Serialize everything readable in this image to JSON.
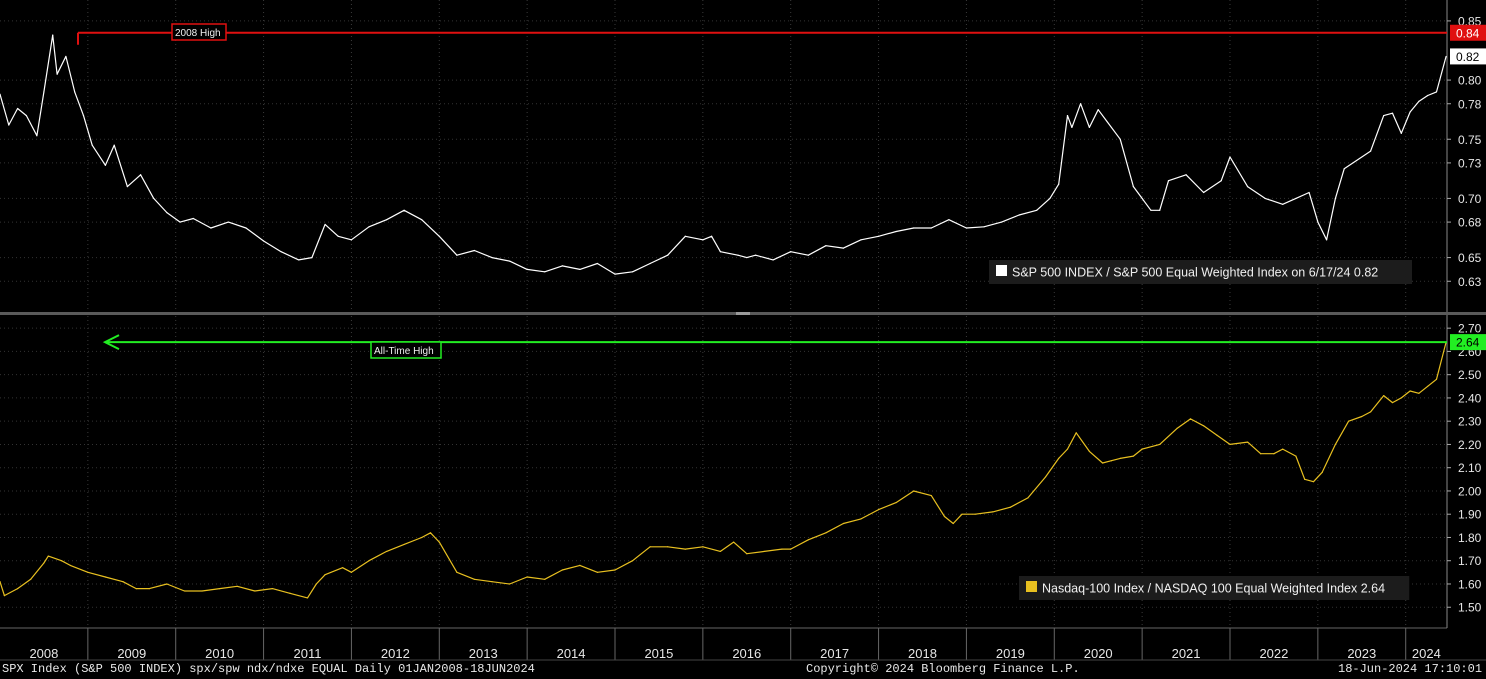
{
  "footer": {
    "left": "SPX Index (S&P 500 INDEX) spx/spw ndx/ndxe EQUAL  Daily 01JAN2008-18JUN2024",
    "center": "Copyright© 2024 Bloomberg Finance L.P.",
    "right": "18-Jun-2024 17:10:01"
  },
  "x_axis": {
    "years": [
      "2008",
      "2009",
      "2010",
      "2011",
      "2012",
      "2013",
      "2014",
      "2015",
      "2016",
      "2017",
      "2018",
      "2019",
      "2020",
      "2021",
      "2022",
      "2023",
      "2024"
    ],
    "range": [
      "2008-01-01",
      "2024-06-18"
    ]
  },
  "chart_data": [
    {
      "type": "line",
      "panel": "top",
      "ylim": [
        0.615,
        0.855
      ],
      "y_ticks": [
        "0.85",
        "0.80",
        "0.78",
        "0.75",
        "0.73",
        "0.70",
        "0.68",
        "0.65",
        "0.63"
      ],
      "legend": "S&P 500 INDEX / S&P 500 Equal Weighted Index on 6/17/24 0.82",
      "legend_placement": "bottom-right",
      "line_color": "#ffffff",
      "reference_line": {
        "label": "2008 High",
        "value": 0.84,
        "value_label": "0.84",
        "color": "#e01010"
      },
      "last_value_label": "0.82",
      "series": [
        {
          "name": "S&P 500 INDEX / S&P 500 Equal Weighted Index",
          "x": [
            2008.0,
            2008.1,
            2008.2,
            2008.3,
            2008.42,
            2008.5,
            2008.6,
            2008.65,
            2008.75,
            2008.85,
            2008.95,
            2009.05,
            2009.2,
            2009.3,
            2009.45,
            2009.6,
            2009.75,
            2009.9,
            2010.05,
            2010.2,
            2010.4,
            2010.6,
            2010.8,
            2011.0,
            2011.2,
            2011.4,
            2011.55,
            2011.7,
            2011.85,
            2012.0,
            2012.2,
            2012.4,
            2012.6,
            2012.8,
            2013.0,
            2013.2,
            2013.4,
            2013.6,
            2013.8,
            2014.0,
            2014.2,
            2014.4,
            2014.6,
            2014.8,
            2015.0,
            2015.2,
            2015.4,
            2015.6,
            2015.8,
            2016.0,
            2016.1,
            2016.2,
            2016.4,
            2016.5,
            2016.6,
            2016.8,
            2017.0,
            2017.2,
            2017.4,
            2017.6,
            2017.8,
            2018.0,
            2018.2,
            2018.4,
            2018.6,
            2018.8,
            2019.0,
            2019.2,
            2019.4,
            2019.6,
            2019.8,
            2019.95,
            2020.05,
            2020.15,
            2020.2,
            2020.3,
            2020.4,
            2020.5,
            2020.6,
            2020.75,
            2020.9,
            2021.0,
            2021.1,
            2021.2,
            2021.3,
            2021.5,
            2021.7,
            2021.9,
            2022.0,
            2022.2,
            2022.4,
            2022.6,
            2022.75,
            2022.9,
            2023.0,
            2023.1,
            2023.2,
            2023.3,
            2023.4,
            2023.6,
            2023.75,
            2023.85,
            2023.95,
            2024.05,
            2024.15,
            2024.25,
            2024.35,
            2024.46
          ],
          "values": [
            0.788,
            0.762,
            0.776,
            0.77,
            0.753,
            0.79,
            0.838,
            0.805,
            0.82,
            0.79,
            0.77,
            0.745,
            0.728,
            0.745,
            0.71,
            0.72,
            0.7,
            0.688,
            0.68,
            0.683,
            0.675,
            0.68,
            0.675,
            0.664,
            0.655,
            0.648,
            0.65,
            0.678,
            0.668,
            0.665,
            0.676,
            0.682,
            0.69,
            0.682,
            0.668,
            0.652,
            0.656,
            0.65,
            0.647,
            0.64,
            0.638,
            0.643,
            0.64,
            0.645,
            0.636,
            0.638,
            0.645,
            0.652,
            0.668,
            0.665,
            0.668,
            0.655,
            0.652,
            0.65,
            0.652,
            0.648,
            0.655,
            0.652,
            0.66,
            0.658,
            0.665,
            0.668,
            0.672,
            0.675,
            0.675,
            0.682,
            0.675,
            0.676,
            0.68,
            0.686,
            0.69,
            0.7,
            0.712,
            0.77,
            0.76,
            0.78,
            0.76,
            0.775,
            0.765,
            0.75,
            0.71,
            0.7,
            0.69,
            0.69,
            0.715,
            0.72,
            0.705,
            0.715,
            0.735,
            0.71,
            0.7,
            0.695,
            0.7,
            0.705,
            0.68,
            0.665,
            0.7,
            0.725,
            0.73,
            0.74,
            0.77,
            0.772,
            0.755,
            0.773,
            0.782,
            0.787,
            0.79,
            0.82
          ]
        }
      ]
    },
    {
      "type": "line",
      "panel": "bottom",
      "ylim": [
        1.415,
        2.705
      ],
      "y_ticks": [
        "2.70",
        "2.60",
        "2.50",
        "2.40",
        "2.30",
        "2.20",
        "2.10",
        "2.00",
        "1.90",
        "1.80",
        "1.70",
        "1.60",
        "1.50"
      ],
      "legend": "Nasdaq-100 Index / NASDAQ 100 Equal Weighted Index 2.64",
      "legend_placement": "bottom-right",
      "line_color": "#e8c020",
      "reference_line": {
        "label": "All-Time High",
        "value": 2.64,
        "value_label": "2.64",
        "color": "#22ee22"
      },
      "last_value_label": "2.64",
      "series": [
        {
          "name": "Nasdaq-100 Index / NASDAQ 100 Equal Weighted Index",
          "x": [
            2008.0,
            2008.05,
            2008.2,
            2008.35,
            2008.5,
            2008.55,
            2008.7,
            2008.8,
            2009.0,
            2009.2,
            2009.4,
            2009.55,
            2009.7,
            2009.9,
            2010.1,
            2010.3,
            2010.5,
            2010.7,
            2010.9,
            2011.1,
            2011.3,
            2011.5,
            2011.6,
            2011.7,
            2011.9,
            2012.0,
            2012.2,
            2012.4,
            2012.6,
            2012.8,
            2012.9,
            2013.0,
            2013.2,
            2013.4,
            2013.6,
            2013.8,
            2014.0,
            2014.2,
            2014.4,
            2014.6,
            2014.8,
            2015.0,
            2015.2,
            2015.4,
            2015.6,
            2015.8,
            2016.0,
            2016.2,
            2016.35,
            2016.5,
            2016.7,
            2016.9,
            2017.0,
            2017.2,
            2017.4,
            2017.6,
            2017.8,
            2018.0,
            2018.2,
            2018.4,
            2018.6,
            2018.75,
            2018.85,
            2018.95,
            2019.1,
            2019.3,
            2019.5,
            2019.7,
            2019.9,
            2020.05,
            2020.15,
            2020.25,
            2020.4,
            2020.55,
            2020.65,
            2020.75,
            2020.9,
            2021.0,
            2021.2,
            2021.4,
            2021.55,
            2021.7,
            2021.85,
            2022.0,
            2022.2,
            2022.35,
            2022.5,
            2022.6,
            2022.75,
            2022.85,
            2022.95,
            2023.05,
            2023.2,
            2023.35,
            2023.5,
            2023.6,
            2023.75,
            2023.85,
            2023.95,
            2024.05,
            2024.15,
            2024.25,
            2024.35,
            2024.46
          ],
          "values": [
            1.61,
            1.55,
            1.58,
            1.62,
            1.69,
            1.72,
            1.7,
            1.68,
            1.65,
            1.63,
            1.61,
            1.58,
            1.58,
            1.6,
            1.57,
            1.57,
            1.58,
            1.59,
            1.57,
            1.58,
            1.56,
            1.54,
            1.6,
            1.64,
            1.67,
            1.65,
            1.7,
            1.74,
            1.77,
            1.8,
            1.82,
            1.78,
            1.65,
            1.62,
            1.61,
            1.6,
            1.63,
            1.62,
            1.66,
            1.68,
            1.65,
            1.66,
            1.7,
            1.76,
            1.76,
            1.75,
            1.76,
            1.74,
            1.78,
            1.73,
            1.74,
            1.75,
            1.75,
            1.79,
            1.82,
            1.86,
            1.88,
            1.92,
            1.95,
            2.0,
            1.98,
            1.89,
            1.86,
            1.9,
            1.9,
            1.91,
            1.93,
            1.97,
            2.06,
            2.14,
            2.18,
            2.25,
            2.17,
            2.12,
            2.13,
            2.14,
            2.15,
            2.18,
            2.2,
            2.27,
            2.31,
            2.28,
            2.24,
            2.2,
            2.21,
            2.16,
            2.16,
            2.18,
            2.15,
            2.05,
            2.04,
            2.08,
            2.2,
            2.3,
            2.32,
            2.34,
            2.41,
            2.38,
            2.4,
            2.43,
            2.42,
            2.45,
            2.48,
            2.64
          ]
        }
      ]
    }
  ]
}
